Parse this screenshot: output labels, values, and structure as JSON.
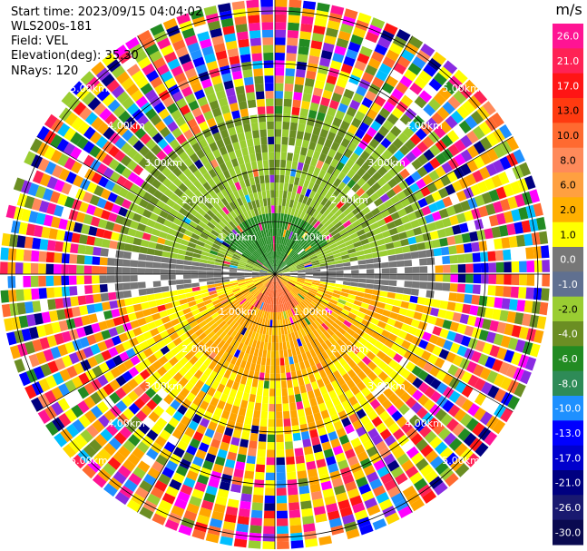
{
  "header": {
    "start_time": "Start time: 2023/09/15 04:04:02",
    "instrument": "WLS200s-181",
    "field": "Field: VEL",
    "elevation": "Elevation(deg): 35.30",
    "nrays": "NRays: 120"
  },
  "chart_data": {
    "type": "heatmap",
    "projection": "polar-ppi",
    "field": "VEL",
    "units": "m/s",
    "rays": 120,
    "range_rings_km": [
      1.0,
      2.0,
      3.0,
      4.0,
      5.0
    ],
    "ring_labels": [
      "1.00km",
      "2.00km",
      "3.00km",
      "4.00km",
      "5.00km"
    ],
    "colorbar": {
      "title": "m/s",
      "ticks": [
        "26.0",
        "21.0",
        "17.0",
        "13.0",
        "10.0",
        "8.0",
        "6.0",
        "2.0",
        "1.0",
        "0.0",
        "-1.0",
        "-2.0",
        "-4.0",
        "-6.0",
        "-8.0",
        "-10.0",
        "-13.0",
        "-17.0",
        "-21.0",
        "-26.0",
        "-30.0"
      ],
      "colors": [
        "#ff1493",
        "#ff2255",
        "#ff1515",
        "#ff3a10",
        "#ff6a30",
        "#ff8a5a",
        "#ffa040",
        "#ffb000",
        "#ffff00",
        "#777777",
        "#607090",
        "#9acd32",
        "#6b8e23",
        "#228b22",
        "#2e8b57",
        "#1e90ff",
        "#0000ff",
        "#0000cd",
        "#000080",
        "#191970",
        "#0a0a50"
      ]
    }
  }
}
